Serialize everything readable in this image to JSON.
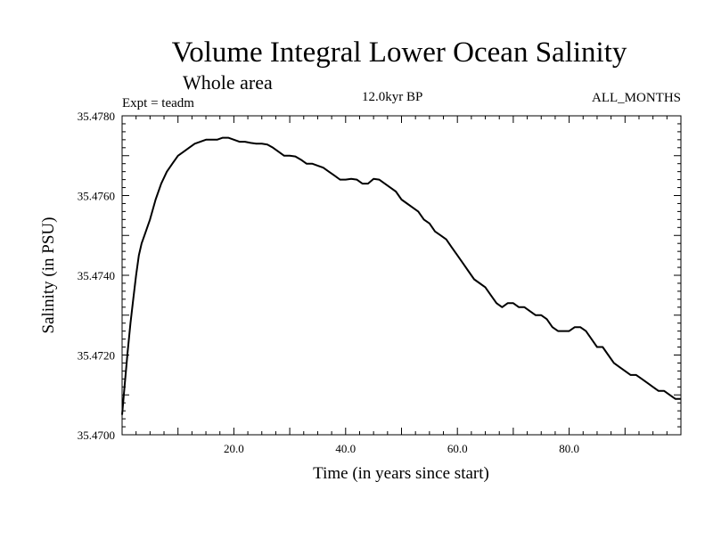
{
  "chart_data": {
    "type": "line",
    "title": "Volume Integral Lower Ocean Salinity",
    "subtitle": "Whole area",
    "experiment_label": "Expt = teadm",
    "period_label": "12.0kyr BP",
    "months_label": "ALL_MONTHS",
    "xlabel": "Time (in years since start)",
    "ylabel": "Salinity (in PSU)",
    "xlim": [
      0,
      100
    ],
    "ylim": [
      35.47,
      35.478
    ],
    "x_ticks": [
      20,
      40,
      60,
      80
    ],
    "x_tick_labels": [
      "20.0",
      "40.0",
      "60.0",
      "80.0"
    ],
    "y_ticks": [
      35.47,
      35.472,
      35.474,
      35.476,
      35.478
    ],
    "y_tick_labels": [
      "35.4700",
      "35.4720",
      "35.4740",
      "35.4760",
      "35.4780"
    ],
    "grid": false,
    "series": [
      {
        "name": "Salinity",
        "x": [
          0.0,
          0.5,
          1.0,
          1.5,
          2.0,
          2.5,
          3.0,
          3.5,
          4.0,
          4.5,
          5.0,
          6.0,
          7.0,
          8.0,
          9.0,
          10.0,
          11.0,
          12.0,
          13.0,
          14.0,
          15.0,
          16.0,
          17.0,
          18.0,
          19.0,
          20.0,
          21.0,
          22.0,
          23.0,
          24.0,
          25.0,
          26.0,
          27.0,
          28.0,
          29.0,
          30.0,
          31.0,
          32.0,
          33.0,
          34.0,
          35.0,
          36.0,
          37.0,
          38.0,
          39.0,
          40.0,
          41.0,
          42.0,
          43.0,
          44.0,
          45.0,
          46.0,
          47.0,
          48.0,
          49.0,
          50.0,
          51.0,
          52.0,
          53.0,
          54.0,
          55.0,
          56.0,
          57.0,
          58.0,
          59.0,
          60.0,
          61.0,
          62.0,
          63.0,
          64.0,
          65.0,
          66.0,
          67.0,
          68.0,
          69.0,
          70.0,
          71.0,
          72.0,
          73.0,
          74.0,
          75.0,
          76.0,
          77.0,
          78.0,
          79.0,
          80.0,
          81.0,
          82.0,
          83.0,
          84.0,
          85.0,
          86.0,
          87.0,
          88.0,
          89.0,
          90.0,
          91.0,
          92.0,
          93.0,
          94.0,
          95.0,
          96.0,
          97.0,
          98.0,
          99.0,
          100.0
        ],
        "values": [
          35.4705,
          35.4713,
          35.4721,
          35.4728,
          35.4734,
          35.474,
          35.4745,
          35.4748,
          35.475,
          35.4752,
          35.4754,
          35.4759,
          35.4763,
          35.4766,
          35.4768,
          35.477,
          35.4771,
          35.4772,
          35.4773,
          35.47735,
          35.4774,
          35.4774,
          35.4774,
          35.47745,
          35.47745,
          35.4774,
          35.47735,
          35.47735,
          35.47732,
          35.4773,
          35.4773,
          35.47728,
          35.4772,
          35.4771,
          35.477,
          35.477,
          35.47698,
          35.4769,
          35.4768,
          35.4768,
          35.47675,
          35.4767,
          35.4766,
          35.4765,
          35.4764,
          35.4764,
          35.47642,
          35.4764,
          35.4763,
          35.4763,
          35.47642,
          35.4764,
          35.4763,
          35.4762,
          35.4761,
          35.4759,
          35.4758,
          35.4757,
          35.4756,
          35.4754,
          35.4753,
          35.4751,
          35.475,
          35.4749,
          35.4747,
          35.4745,
          35.4743,
          35.4741,
          35.4739,
          35.4738,
          35.4737,
          35.4735,
          35.4733,
          35.4732,
          35.4733,
          35.4733,
          35.4732,
          35.4732,
          35.4731,
          35.473,
          35.473,
          35.4729,
          35.4727,
          35.4726,
          35.4726,
          35.4726,
          35.4727,
          35.4727,
          35.4726,
          35.4724,
          35.4722,
          35.4722,
          35.472,
          35.4718,
          35.4717,
          35.4716,
          35.4715,
          35.4715,
          35.4714,
          35.4713,
          35.4712,
          35.4711,
          35.4711,
          35.471,
          35.4709,
          35.4709
        ]
      }
    ]
  }
}
